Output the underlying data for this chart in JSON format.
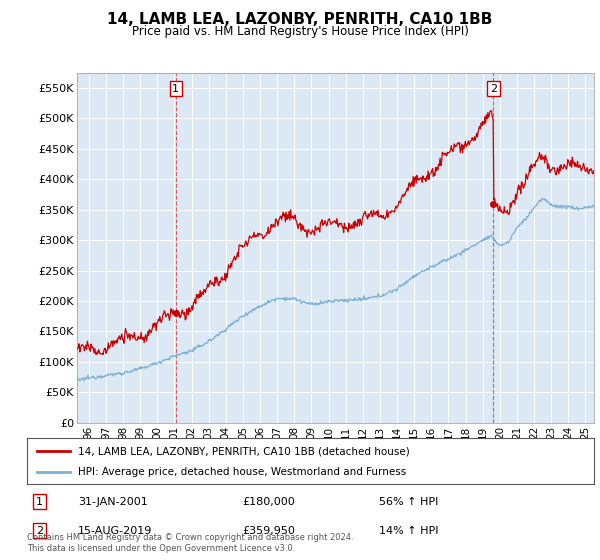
{
  "title": "14, LAMB LEA, LAZONBY, PENRITH, CA10 1BB",
  "subtitle": "Price paid vs. HM Land Registry's House Price Index (HPI)",
  "fig_bg_color": "#ffffff",
  "plot_bg_color": "#dce9f5",
  "ylabel_ticks": [
    "£0",
    "£50K",
    "£100K",
    "£150K",
    "£200K",
    "£250K",
    "£300K",
    "£350K",
    "£400K",
    "£450K",
    "£500K",
    "£550K"
  ],
  "ytick_values": [
    0,
    50000,
    100000,
    150000,
    200000,
    250000,
    300000,
    350000,
    400000,
    450000,
    500000,
    550000
  ],
  "ylim": [
    0,
    575000
  ],
  "xlim_start": 1995.3,
  "xlim_end": 2025.5,
  "xtick_years": [
    1996,
    1997,
    1998,
    1999,
    2000,
    2001,
    2002,
    2003,
    2004,
    2005,
    2006,
    2007,
    2008,
    2009,
    2010,
    2011,
    2012,
    2013,
    2014,
    2015,
    2016,
    2017,
    2018,
    2019,
    2020,
    2021,
    2022,
    2023,
    2024,
    2025
  ],
  "red_line_color": "#cc0000",
  "blue_line_color": "#7bafd4",
  "sale1_x": 2001.08,
  "sale1_y": 180000,
  "sale2_x": 2019.62,
  "sale2_y": 359950,
  "legend_line1": "14, LAMB LEA, LAZONBY, PENRITH, CA10 1BB (detached house)",
  "legend_line2": "HPI: Average price, detached house, Westmorland and Furness",
  "annotation1_date": "31-JAN-2001",
  "annotation1_price": "£180,000",
  "annotation1_hpi": "56% ↑ HPI",
  "annotation2_date": "15-AUG-2019",
  "annotation2_price": "£359,950",
  "annotation2_hpi": "14% ↑ HPI",
  "footer": "Contains HM Land Registry data © Crown copyright and database right 2024.\nThis data is licensed under the Open Government Licence v3.0."
}
